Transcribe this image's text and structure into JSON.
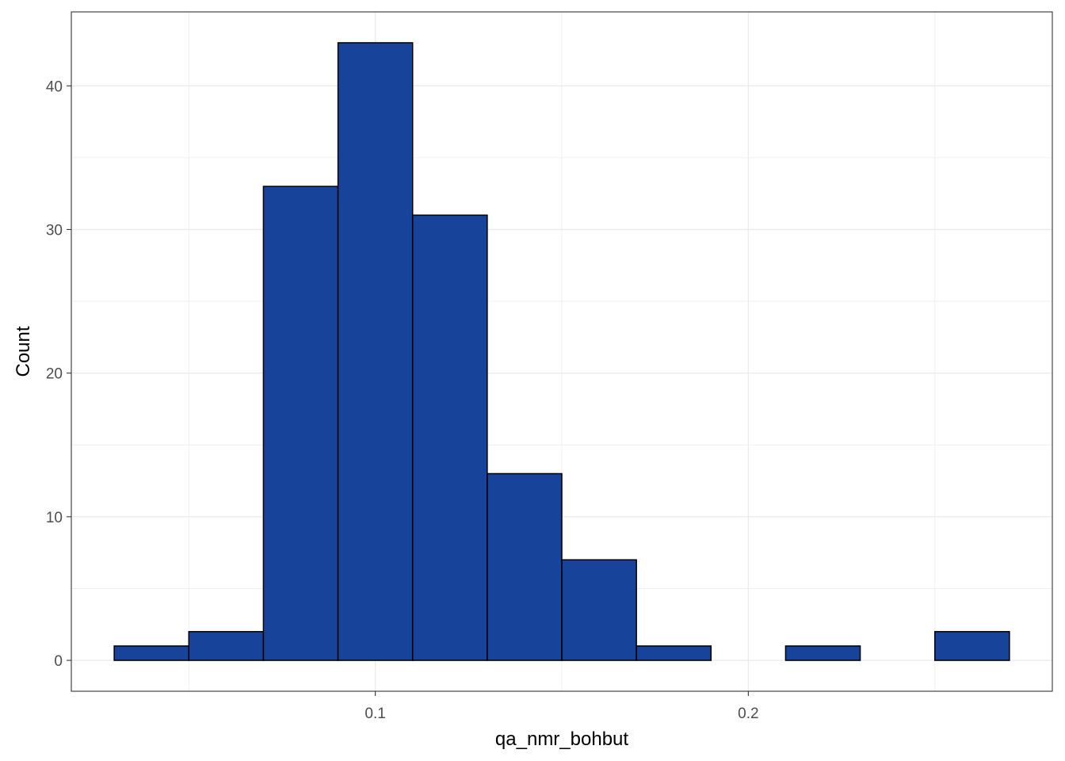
{
  "chart_data": {
    "type": "bar",
    "subtype": "histogram",
    "xlabel": "qa_nmr_bohbut",
    "ylabel": "Count",
    "bins": [
      {
        "x0": 0.03,
        "x1": 0.05,
        "count": 1
      },
      {
        "x0": 0.05,
        "x1": 0.07,
        "count": 2
      },
      {
        "x0": 0.07,
        "x1": 0.09,
        "count": 33
      },
      {
        "x0": 0.09,
        "x1": 0.11,
        "count": 43
      },
      {
        "x0": 0.11,
        "x1": 0.13,
        "count": 31
      },
      {
        "x0": 0.13,
        "x1": 0.15,
        "count": 13
      },
      {
        "x0": 0.15,
        "x1": 0.17,
        "count": 7
      },
      {
        "x0": 0.17,
        "x1": 0.19,
        "count": 1
      },
      {
        "x0": 0.19,
        "x1": 0.21,
        "count": 0
      },
      {
        "x0": 0.21,
        "x1": 0.23,
        "count": 1
      },
      {
        "x0": 0.23,
        "x1": 0.25,
        "count": 0
      },
      {
        "x0": 0.25,
        "x1": 0.27,
        "count": 2
      }
    ],
    "xlim": [
      0.0185,
      0.2815
    ],
    "ylim": [
      -2.15,
      45.15
    ],
    "x_ticks": [
      {
        "value": 0.1,
        "label": "0.1"
      },
      {
        "value": 0.2,
        "label": "0.2"
      }
    ],
    "x_minor_ticks": [
      0.05,
      0.15,
      0.25
    ],
    "y_ticks": [
      {
        "value": 0,
        "label": "0"
      },
      {
        "value": 10,
        "label": "10"
      },
      {
        "value": 20,
        "label": "20"
      },
      {
        "value": 30,
        "label": "30"
      },
      {
        "value": 40,
        "label": "40"
      }
    ],
    "y_minor_ticks": [
      5,
      15,
      25,
      35
    ],
    "grid": true,
    "legend": "none",
    "colors": {
      "bar_fill": "#17449A",
      "bar_outline": "#000000",
      "grid": "#ebebeb",
      "panel_border": "#333333",
      "tick_label": "#4d4d4d"
    }
  }
}
